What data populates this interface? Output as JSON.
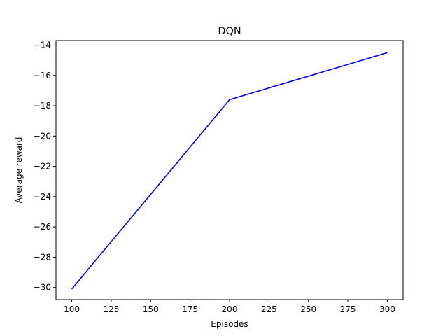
{
  "chart_data": {
    "type": "line",
    "title": "DQN",
    "xlabel": "Episodes",
    "ylabel": "Average reward",
    "xlim": [
      90,
      310
    ],
    "ylim": [
      -30.8,
      -13.7
    ],
    "x_ticks": [
      100,
      125,
      150,
      175,
      200,
      225,
      250,
      275,
      300
    ],
    "y_ticks": [
      -30,
      -28,
      -26,
      -24,
      -22,
      -20,
      -18,
      -16,
      -14
    ],
    "x_tick_labels": [
      "100",
      "125",
      "150",
      "175",
      "200",
      "225",
      "250",
      "275",
      "300"
    ],
    "y_tick_labels": [
      "−30",
      "−28",
      "−26",
      "−24",
      "−22",
      "−20",
      "−18",
      "−16",
      "−14"
    ],
    "grid": false,
    "series": [
      {
        "color": "#0000ff",
        "x": [
          100,
          200,
          300
        ],
        "y": [
          -30.1,
          -17.6,
          -14.5
        ]
      }
    ]
  }
}
